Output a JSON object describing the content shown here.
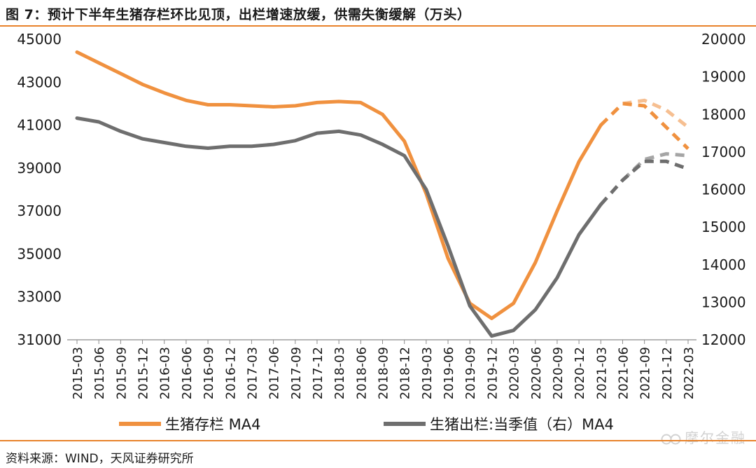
{
  "page": {
    "title": "图 7：预计下半年生猪存栏环比见顶，出栏增速放缓，供需失衡缓解（万头）",
    "source": "资料来源：WIND，天风证券研究所",
    "watermark": "摩尔金融"
  },
  "colors": {
    "orange": "#f0913f",
    "orange_light": "#f6bf91",
    "gray": "#6e6e6e",
    "gray_light": "#a5a5a5",
    "accent_rule": "#e8822a"
  },
  "chart_data": {
    "type": "line",
    "title": "",
    "xlabel": "",
    "ylabel": "",
    "x": [
      "2015-03",
      "2015-06",
      "2015-09",
      "2015-12",
      "2016-03",
      "2016-06",
      "2016-09",
      "2016-12",
      "2017-03",
      "2017-06",
      "2017-09",
      "2017-12",
      "2018-03",
      "2018-06",
      "2018-09",
      "2018-12",
      "2019-03",
      "2019-06",
      "2019-09",
      "2019-12",
      "2020-03",
      "2020-06",
      "2020-09",
      "2020-12",
      "2021-03",
      "2021-06",
      "2021-09",
      "2021-12",
      "2022-03"
    ],
    "x_step_months": 3,
    "y_left_ticks": [
      "31000",
      "33000",
      "35000",
      "37000",
      "39000",
      "41000",
      "43000",
      "45000"
    ],
    "y_left_lim": [
      31000,
      45000
    ],
    "y_right_ticks": [
      "12000",
      "13000",
      "14000",
      "15000",
      "16000",
      "17000",
      "18000",
      "19000",
      "20000"
    ],
    "y_right_lim": [
      12000,
      20000
    ],
    "grid": false,
    "legend_position": "bottom",
    "series": [
      {
        "name": "生猪存栏 MA4",
        "axis": "left",
        "color": "orange",
        "values": [
          44400,
          43900,
          43400,
          42900,
          42500,
          42150,
          41950,
          41950,
          41900,
          41850,
          41900,
          42050,
          42100,
          42050,
          41500,
          40250,
          37800,
          34800,
          32700,
          32000,
          32700,
          34600,
          37000,
          39300,
          41000,
          42000,
          42200,
          41300,
          40500
        ],
        "projection": [
          {
            "x": [
              "2021-03",
              "2021-06",
              "2021-09",
              "2021-12",
              "2022-03"
            ],
            "values": [
              41000,
              42000,
              41900,
              40900,
              39900
            ],
            "style": "dashed"
          },
          {
            "x": [
              "2021-06",
              "2021-09",
              "2021-12",
              "2022-03"
            ],
            "values": [
              42000,
              42150,
              41700,
              40900
            ],
            "style": "dashed-light"
          }
        ]
      },
      {
        "name": "生猪出栏:当季值（右）MA4",
        "axis": "right",
        "color": "gray",
        "values": [
          17900,
          17800,
          17550,
          17350,
          17250,
          17150,
          17100,
          17150,
          17150,
          17200,
          17300,
          17500,
          17550,
          17450,
          17200,
          16900,
          16000,
          14500,
          12900,
          12100,
          12250,
          12800,
          13650,
          14800,
          15600,
          16300,
          16800,
          16850,
          16600
        ],
        "projection": [
          {
            "x": [
              "2021-03",
              "2021-06",
              "2021-09",
              "2021-12",
              "2022-03"
            ],
            "values": [
              15600,
              16250,
              16750,
              16750,
              16550
            ],
            "style": "dashed"
          },
          {
            "x": [
              "2021-06",
              "2021-09",
              "2021-12",
              "2022-03"
            ],
            "values": [
              16250,
              16800,
              16950,
              16900
            ],
            "style": "dashed-light"
          }
        ]
      }
    ]
  }
}
